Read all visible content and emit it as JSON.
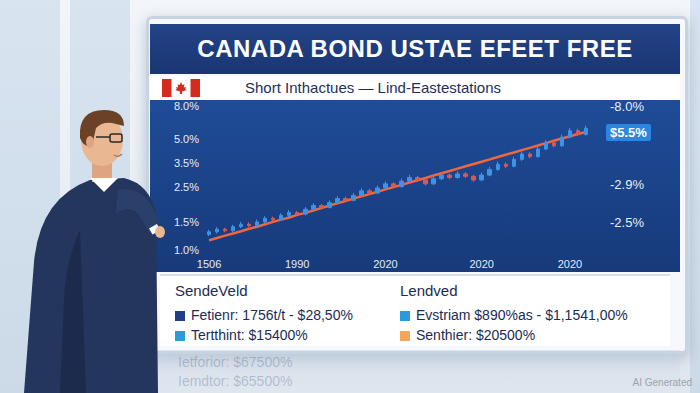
{
  "chart_data": {
    "type": "candlestick",
    "title": "CANADA BOND USTAE EFEET FREE",
    "subtitle": "Short Inthactues — Lind-Eastestations",
    "categories": [
      "1506",
      null,
      null,
      null,
      null,
      null,
      null,
      null,
      null,
      null,
      null,
      "1990",
      null,
      null,
      null,
      null,
      null,
      null,
      null,
      null,
      null,
      null,
      "2020",
      null,
      null,
      null,
      null,
      null,
      null,
      null,
      null,
      null,
      null,
      null,
      "2020",
      null,
      null,
      null,
      null,
      null,
      null,
      null,
      null,
      null,
      null,
      "2020",
      null,
      null
    ],
    "series": [
      {
        "type": "candlestick",
        "colors": [
          "#3d93e6",
          "#e0574f"
        ],
        "values": [
          [
            1.25,
            1.3,
            1.22,
            1.34
          ],
          [
            1.3,
            1.35,
            1.27,
            1.39
          ],
          [
            1.35,
            1.32,
            1.29,
            1.38
          ],
          [
            1.32,
            1.4,
            1.3,
            1.44
          ],
          [
            1.4,
            1.45,
            1.37,
            1.5
          ],
          [
            1.45,
            1.42,
            1.39,
            1.49
          ],
          [
            1.42,
            1.5,
            1.4,
            1.55
          ],
          [
            1.5,
            1.58,
            1.47,
            1.63
          ],
          [
            1.58,
            1.55,
            1.51,
            1.62
          ],
          [
            1.55,
            1.65,
            1.52,
            1.7
          ],
          [
            1.65,
            1.72,
            1.61,
            1.78
          ],
          [
            1.72,
            1.68,
            1.64,
            1.76
          ],
          [
            1.68,
            1.8,
            1.65,
            1.86
          ],
          [
            1.8,
            1.9,
            1.76,
            1.97
          ],
          [
            1.9,
            1.85,
            1.8,
            1.94
          ],
          [
            1.85,
            1.98,
            1.82,
            2.05
          ],
          [
            1.98,
            2.1,
            1.94,
            2.18
          ],
          [
            2.1,
            2.05,
            2.0,
            2.16
          ],
          [
            2.05,
            2.2,
            2.02,
            2.28
          ],
          [
            2.2,
            2.35,
            2.15,
            2.44
          ],
          [
            2.35,
            2.28,
            2.22,
            2.42
          ],
          [
            2.28,
            2.45,
            2.24,
            2.54
          ],
          [
            2.45,
            2.6,
            2.4,
            2.7
          ],
          [
            2.6,
            2.5,
            2.44,
            2.66
          ],
          [
            2.5,
            2.7,
            2.46,
            2.8
          ],
          [
            2.7,
            2.85,
            2.64,
            2.96
          ],
          [
            2.85,
            2.75,
            2.68,
            2.92
          ],
          [
            2.75,
            2.6,
            2.54,
            2.82
          ],
          [
            2.6,
            2.8,
            2.56,
            2.9
          ],
          [
            2.8,
            2.95,
            2.74,
            3.06
          ],
          [
            2.95,
            2.85,
            2.78,
            3.02
          ],
          [
            2.85,
            3.0,
            2.8,
            3.12
          ],
          [
            3.0,
            2.9,
            2.84,
            3.08
          ],
          [
            2.9,
            2.75,
            2.68,
            2.96
          ],
          [
            2.75,
            2.95,
            2.7,
            3.06
          ],
          [
            2.95,
            3.2,
            2.9,
            3.32
          ],
          [
            3.2,
            3.45,
            3.14,
            3.58
          ],
          [
            3.45,
            3.35,
            3.26,
            3.54
          ],
          [
            3.35,
            3.7,
            3.3,
            3.84
          ],
          [
            3.7,
            4.0,
            3.62,
            4.16
          ],
          [
            4.0,
            3.85,
            3.76,
            4.1
          ],
          [
            3.85,
            4.3,
            3.8,
            4.46
          ],
          [
            4.3,
            4.7,
            4.22,
            4.88
          ],
          [
            4.7,
            4.5,
            4.4,
            4.86
          ],
          [
            4.5,
            5.1,
            4.44,
            5.3
          ],
          [
            5.1,
            5.6,
            5.0,
            5.82
          ],
          [
            5.6,
            5.3,
            5.18,
            5.76
          ],
          [
            5.3,
            5.8,
            5.22,
            6.04
          ]
        ]
      },
      {
        "type": "line",
        "color": "#f0663f",
        "values": [
          1.15,
          1.19,
          1.23,
          1.27,
          1.31,
          1.36,
          1.4,
          1.45,
          1.5,
          1.55,
          1.6,
          1.66,
          1.71,
          1.77,
          1.83,
          1.9,
          1.96,
          2.03,
          2.1,
          2.17,
          2.24,
          2.32,
          2.4,
          2.48,
          2.56,
          2.65,
          2.74,
          2.83,
          2.93,
          3.03,
          3.13,
          3.24,
          3.35,
          3.46,
          3.58,
          3.7,
          3.83,
          3.96,
          4.09,
          4.23,
          4.37,
          4.52,
          4.68,
          4.84,
          5.0,
          5.17,
          5.34,
          5.5
        ]
      }
    ],
    "ylim": [
      1,
      8
    ],
    "yticks": [
      {
        "value": 1,
        "label": "1.0%"
      },
      {
        "value": 1.5,
        "label": "1.5%"
      },
      {
        "value": 2.5,
        "label": "2.5%"
      },
      {
        "value": 3.5,
        "label": "3.5%"
      },
      {
        "value": 5,
        "label": "5.0%"
      },
      {
        "value": 8,
        "label": "8.0%"
      }
    ],
    "log": "y",
    "grid": false,
    "annotations": [
      {
        "text": "-8.0%"
      },
      {
        "text": "$5.5%",
        "color": "#2a86e0"
      },
      {
        "text": "-2.9%"
      },
      {
        "text": "-2.5%"
      }
    ]
  },
  "legend_panel": {
    "left": {
      "heading": "SendeVeld",
      "items": [
        {
          "text": "Fetienr: 1756t/t - $28,50%",
          "color": "#1f3f86"
        },
        {
          "text": "Tertthint: $15400%",
          "color": "#2a9ad8"
        }
      ]
    },
    "right": {
      "heading": "Lendved",
      "items": [
        {
          "text": "Evstriam $890%as - $1,1541,00%",
          "color": "#2a9ad8"
        },
        {
          "text": "Senthier: $20500%",
          "color": "#f2a65a"
        }
      ]
    }
  },
  "reflection": [
    "Ietforior: $67500%",
    "Iemdtor: $65500%"
  ],
  "watermark": "AI Generated"
}
